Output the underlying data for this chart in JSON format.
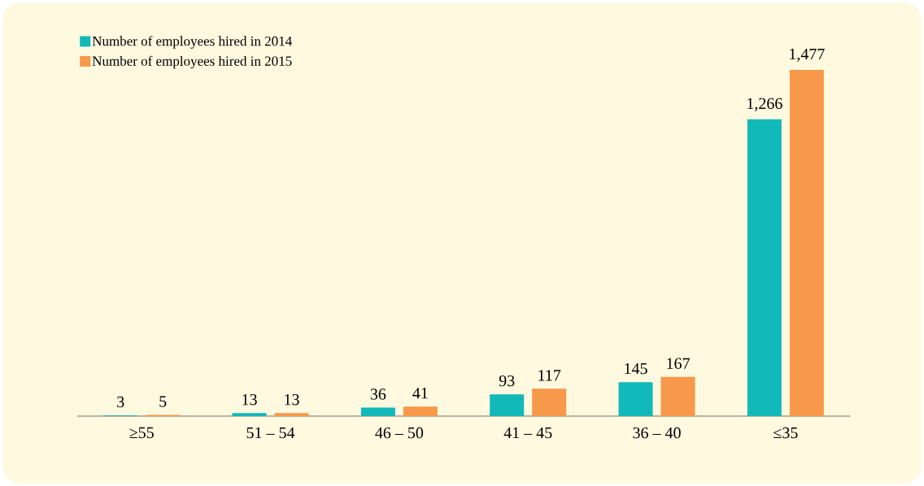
{
  "chart_data": {
    "type": "bar",
    "categories": [
      "≥55",
      "51 – 54",
      "46 – 50",
      "41 – 45",
      "36 – 40",
      "≤35"
    ],
    "series": [
      {
        "name": "Number of employees hired in 2014",
        "color": "#12b9b9",
        "values": [
          3,
          13,
          36,
          93,
          145,
          1266
        ],
        "value_labels": [
          "3",
          "13",
          "36",
          "93",
          "145",
          "1,266"
        ]
      },
      {
        "name": "Number of employees hired in 2015",
        "color": "#f7984b",
        "values": [
          5,
          13,
          41,
          117,
          167,
          1477
        ],
        "value_labels": [
          "5",
          "13",
          "41",
          "117",
          "167",
          "1,477"
        ]
      }
    ],
    "legend": "top left"
  }
}
